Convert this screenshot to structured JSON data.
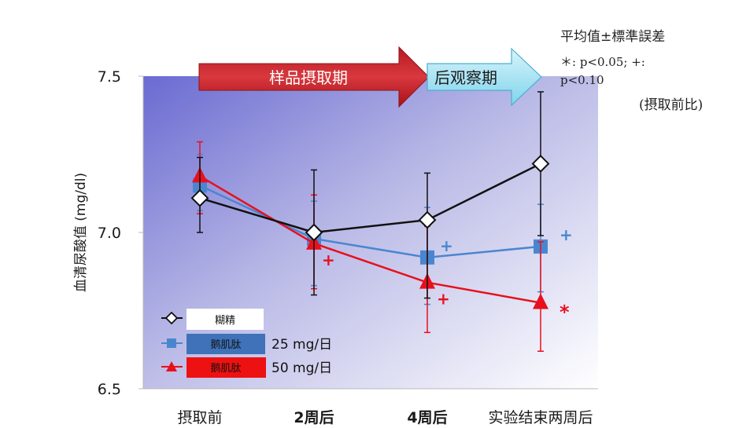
{
  "notes": {
    "line1": "平均值±標準誤差",
    "line2": "＊: p<0.05; +:",
    "line3": "p<0.10",
    "line4": "(摂取前比)"
  },
  "arrows": {
    "intake_label": "样品摂取期",
    "followup_label": "后观察期"
  },
  "legend": {
    "items": [
      {
        "label": "糊精",
        "suffix": ""
      },
      {
        "label": "鹅肌肽",
        "suffix": "25 mg/日"
      },
      {
        "label": "鹅肌肽",
        "suffix": "50 mg/日"
      }
    ]
  },
  "colors": {
    "dextrin": "#111111",
    "low": "#4a86d0",
    "high": "#e8101c",
    "legend_low_box": "#3f72b8",
    "legend_high_box": "#ee1111",
    "arrow_red": "#c8222a",
    "arrow_cyan": "#7fd4ec"
  },
  "chart_data": {
    "type": "line",
    "ylabel": "血清尿酸值 (mg/dl)",
    "categories": [
      "摂取前",
      "2周后",
      "4周后",
      "实验结束两周后"
    ],
    "ylim": [
      6.5,
      7.5
    ],
    "yticks": [
      "6.5",
      "7.0",
      "7.5"
    ],
    "series": [
      {
        "key": "dextrin",
        "marker": "diamond",
        "values": [
          7.11,
          7.0,
          7.04,
          7.22
        ],
        "err_hi": [
          7.24,
          7.2,
          7.19,
          7.45
        ],
        "err_lo": [
          7.0,
          6.8,
          6.79,
          6.99
        ],
        "annotations": [
          "",
          "",
          "",
          ""
        ]
      },
      {
        "key": "low",
        "marker": "square",
        "values": [
          7.15,
          6.98,
          6.92,
          6.955
        ],
        "err_hi": [
          7.25,
          7.1,
          7.08,
          7.09
        ],
        "err_lo": [
          7.07,
          6.83,
          6.77,
          6.81
        ],
        "annotations": [
          "",
          "",
          "+",
          "+"
        ]
      },
      {
        "key": "high",
        "marker": "triangle",
        "values": [
          7.18,
          6.965,
          6.84,
          6.775
        ],
        "err_hi": [
          7.29,
          7.12,
          7.02,
          6.97
        ],
        "err_lo": [
          7.06,
          6.82,
          6.68,
          6.62
        ],
        "annotations": [
          "",
          "+",
          "+",
          "*"
        ]
      }
    ]
  }
}
